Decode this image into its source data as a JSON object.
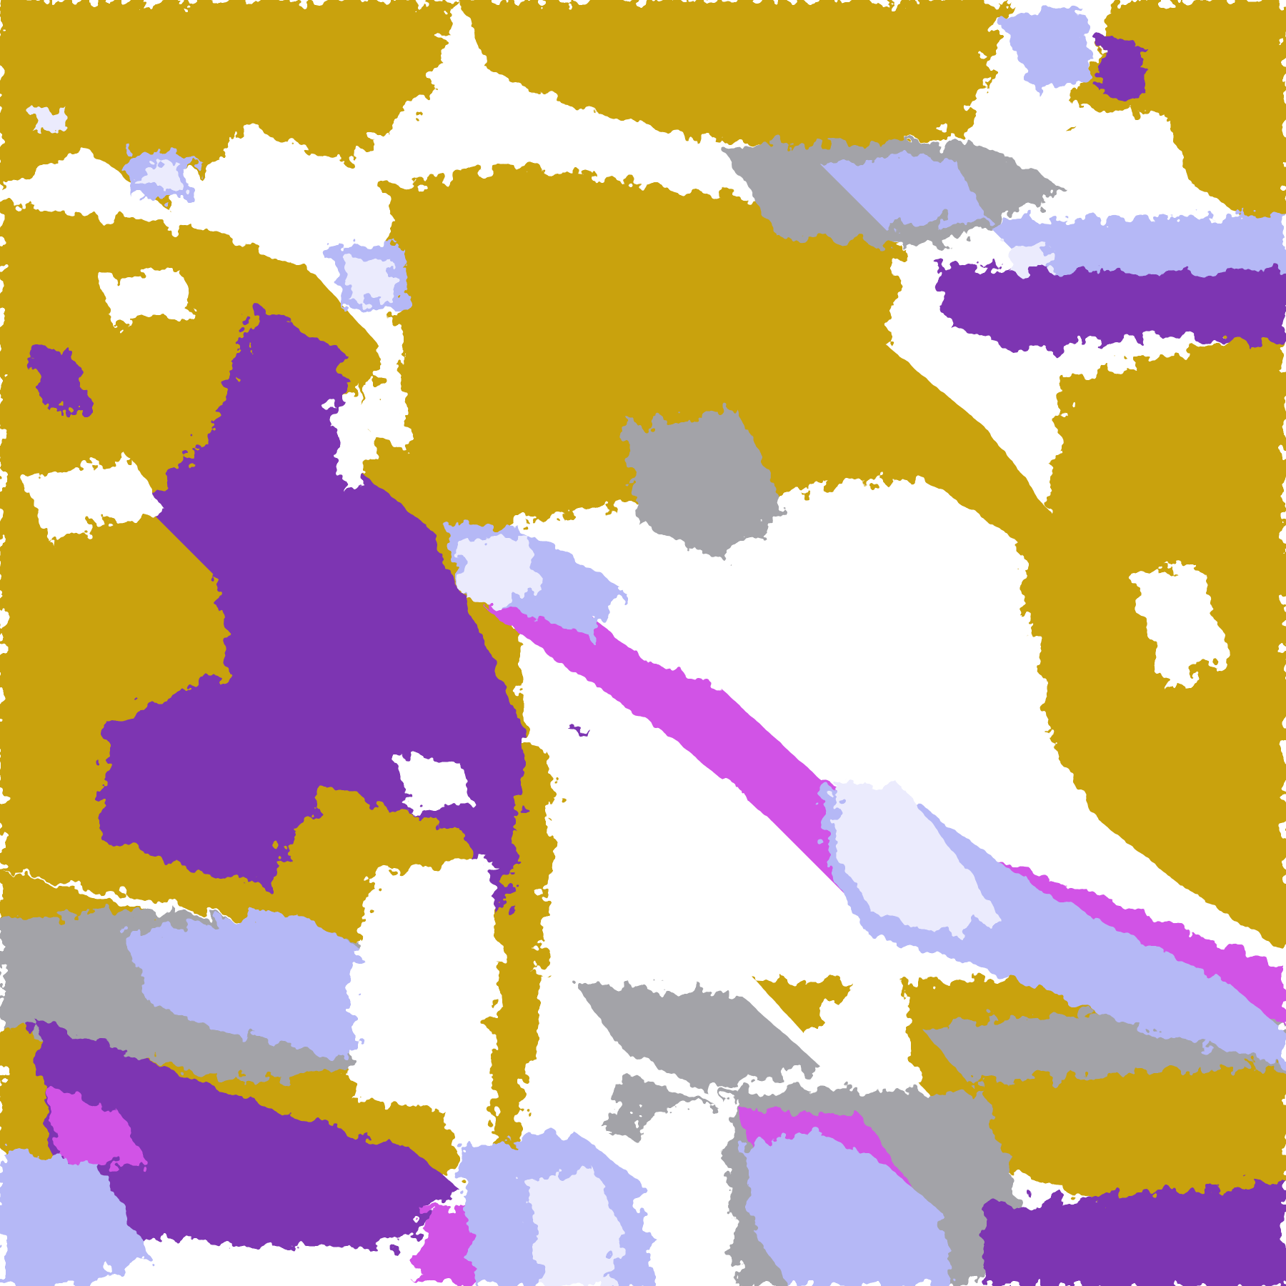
{
  "image": {
    "kind": "false-color satellite classification",
    "palette": {
      "clear": "#ffffff",
      "gold": "#c9a20e",
      "purple": "#7d35b2",
      "magenta": "#d152e6",
      "lavender": "#b5b8f6",
      "pale_lavender": "#ebebfd",
      "gray": "#a3a3a8"
    }
  }
}
